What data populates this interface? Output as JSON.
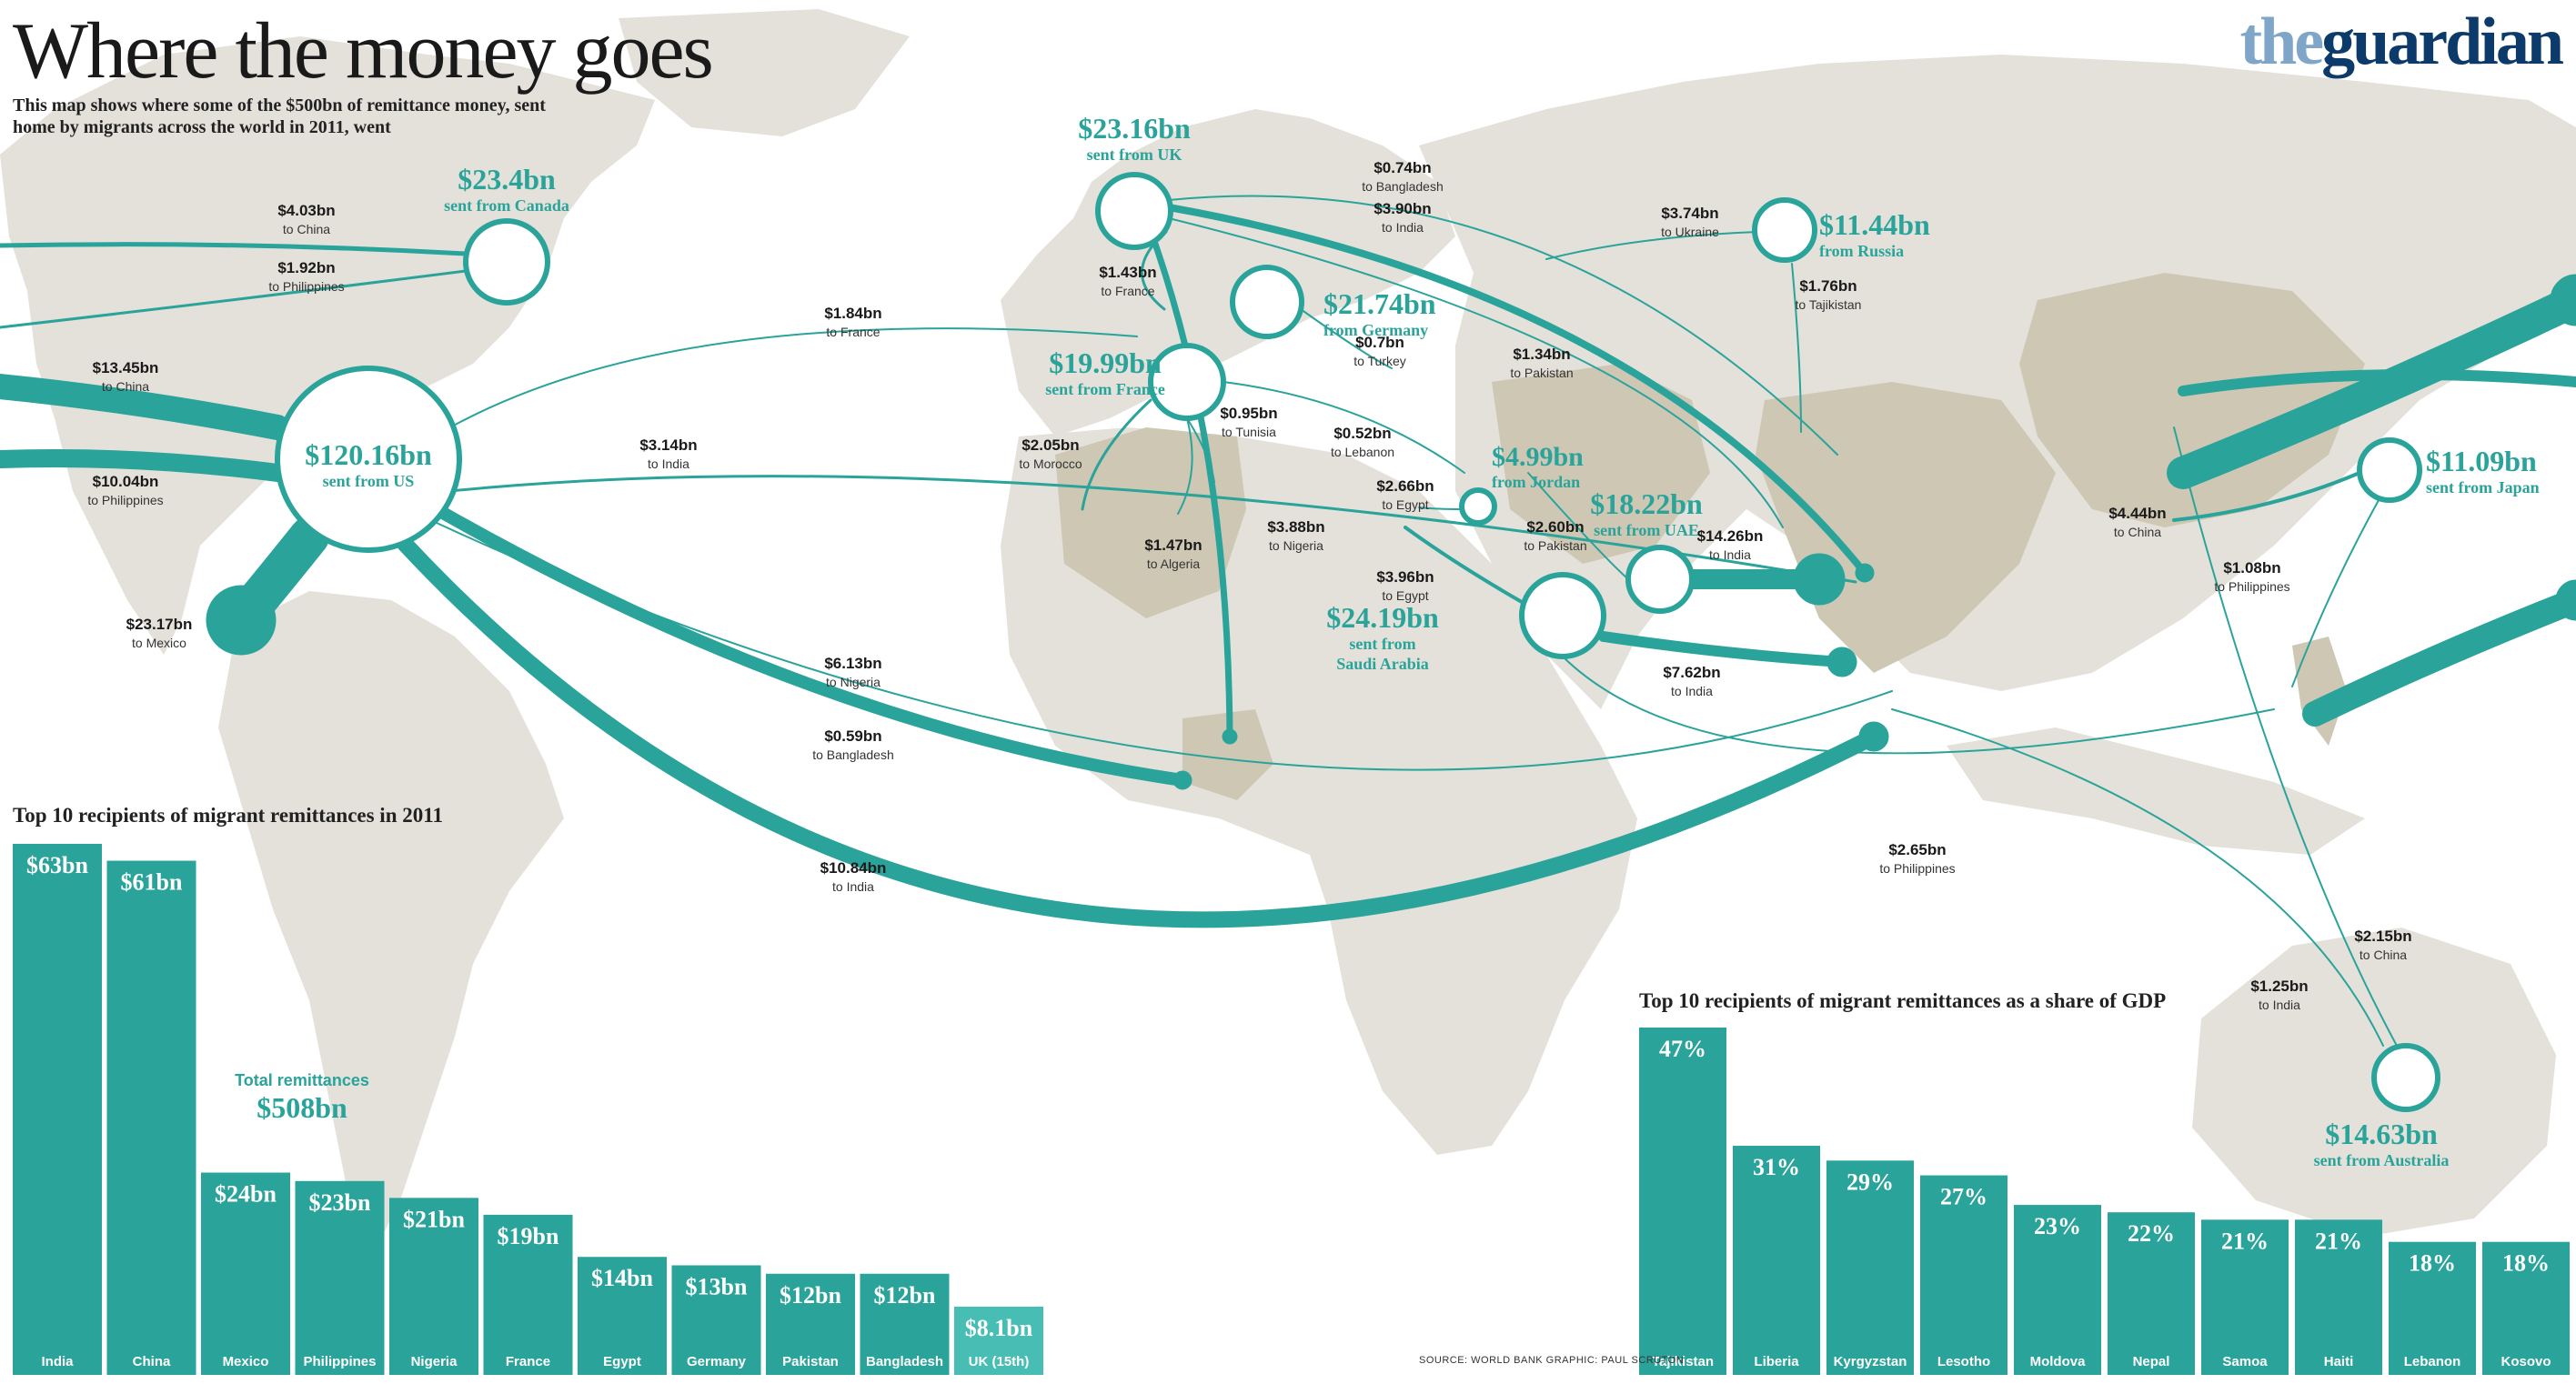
{
  "header": {
    "title": "Where the money goes",
    "subtitle": "This map shows where some of the $500bn of remittance money, sent home by migrants across the world in 2011, went",
    "logo_prefix": "the",
    "logo_name": "guardian"
  },
  "footer": {
    "source": "SOURCE: WORLD BANK   GRAPHIC: PAUL SCRUTON"
  },
  "colors": {
    "teal": "#2aa39a",
    "land": "#e3e1d9",
    "land_dark": "#cdc7b4",
    "bar": "#2aa39a",
    "bar_light": "#48bdb3"
  },
  "icons": {
    "logo": "guardian-wordmark"
  },
  "map_flows": {
    "hubs": [
      {
        "id": "us",
        "value": "$120.16bn",
        "label": "sent from US"
      },
      {
        "id": "canada",
        "value": "$23.4bn",
        "label": "sent from Canada"
      },
      {
        "id": "uk",
        "value": "$23.16bn",
        "label": "sent from UK"
      },
      {
        "id": "germany",
        "value": "$21.74bn",
        "label": "from Germany"
      },
      {
        "id": "france",
        "value": "$19.99bn",
        "label": "sent from France"
      },
      {
        "id": "russia",
        "value": "$11.44bn",
        "label": "from Russia"
      },
      {
        "id": "jordan",
        "value": "$4.99bn",
        "label": "from Jordan"
      },
      {
        "id": "uae",
        "value": "$18.22bn",
        "label": "sent from UAE"
      },
      {
        "id": "saudi",
        "value": "$24.19bn",
        "label": "sent from Saudi Arabia"
      },
      {
        "id": "japan",
        "value": "$11.09bn",
        "label": "sent from Japan"
      },
      {
        "id": "australia",
        "value": "$14.63bn",
        "label": "sent from Australia"
      }
    ],
    "flows": [
      {
        "from": "canada",
        "amount": "$4.03bn",
        "to": "to China"
      },
      {
        "from": "canada",
        "amount": "$1.92bn",
        "to": "to Philippines"
      },
      {
        "from": "us",
        "amount": "$13.45bn",
        "to": "to China"
      },
      {
        "from": "us",
        "amount": "$10.04bn",
        "to": "to Philippines"
      },
      {
        "from": "us",
        "amount": "$23.17bn",
        "to": "to Mexico"
      },
      {
        "from": "us",
        "amount": "$1.84bn",
        "to": "to France"
      },
      {
        "from": "us",
        "amount": "$3.14bn",
        "to": "to India"
      },
      {
        "from": "us",
        "amount": "$6.13bn",
        "to": "to Nigeria"
      },
      {
        "from": "us",
        "amount": "$0.59bn",
        "to": "to Bangladesh"
      },
      {
        "from": "us",
        "amount": "$10.84bn",
        "to": "to India"
      },
      {
        "from": "uk",
        "amount": "$0.74bn",
        "to": "to Bangladesh"
      },
      {
        "from": "uk",
        "amount": "$3.90bn",
        "to": "to India"
      },
      {
        "from": "uk",
        "amount": "$1.43bn",
        "to": "to France"
      },
      {
        "from": "uk",
        "amount": "$3.88bn",
        "to": "to Nigeria"
      },
      {
        "from": "uk",
        "amount": "$1.34bn",
        "to": "to Pakistan"
      },
      {
        "from": "germany",
        "amount": "$0.7bn",
        "to": "to Turkey"
      },
      {
        "from": "france",
        "amount": "$0.95bn",
        "to": "to Tunisia"
      },
      {
        "from": "france",
        "amount": "$2.05bn",
        "to": "to Morocco"
      },
      {
        "from": "france",
        "amount": "$1.47bn",
        "to": "to Algeria"
      },
      {
        "from": "france",
        "amount": "$0.52bn",
        "to": "to Lebanon"
      },
      {
        "from": "russia",
        "amount": "$3.74bn",
        "to": "to Ukraine"
      },
      {
        "from": "russia",
        "amount": "$1.76bn",
        "to": "to Tajikistan"
      },
      {
        "from": "jordan",
        "amount": "$2.66bn",
        "to": "to Egypt"
      },
      {
        "from": "uae",
        "amount": "$2.60bn",
        "to": "to Pakistan"
      },
      {
        "from": "uae",
        "amount": "$14.26bn",
        "to": "to India"
      },
      {
        "from": "saudi",
        "amount": "$3.96bn",
        "to": "to Egypt"
      },
      {
        "from": "saudi",
        "amount": "$7.62bn",
        "to": "to India"
      },
      {
        "from": "saudi",
        "amount": "$2.65bn",
        "to": "to Philippines"
      },
      {
        "from": "japan",
        "amount": "$4.44bn",
        "to": "to China"
      },
      {
        "from": "japan",
        "amount": "$1.08bn",
        "to": "to Philippines"
      },
      {
        "from": "australia",
        "amount": "$2.15bn",
        "to": "to China"
      },
      {
        "from": "australia",
        "amount": "$1.25bn",
        "to": "to India"
      }
    ]
  },
  "totals": {
    "label": "Total remittances",
    "value": "$508bn"
  },
  "chart_data": [
    {
      "type": "bar",
      "title": "Top 10 recipients of migrant remittances in 2011",
      "categories": [
        "India",
        "China",
        "Mexico",
        "Philippines",
        "Nigeria",
        "France",
        "Egypt",
        "Germany",
        "Pakistan",
        "Bangladesh",
        "UK (15th)"
      ],
      "values": [
        63,
        61,
        24,
        23,
        21,
        19,
        14,
        13,
        12,
        12,
        8.1
      ],
      "value_labels": [
        "$63bn",
        "$61bn",
        "$24bn",
        "$23bn",
        "$21bn",
        "$19bn",
        "$14bn",
        "$13bn",
        "$12bn",
        "$12bn",
        "$8.1bn"
      ],
      "unit": "$bn",
      "ylim": [
        0,
        63
      ]
    },
    {
      "type": "bar",
      "title": "Top 10 recipients of migrant remittances as a share of GDP",
      "categories": [
        "Tajikistan",
        "Liberia",
        "Kyrgyzstan",
        "Lesotho",
        "Moldova",
        "Nepal",
        "Samoa",
        "Haiti",
        "Lebanon",
        "Kosovo"
      ],
      "values": [
        47,
        31,
        29,
        27,
        23,
        22,
        21,
        21,
        18,
        18
      ],
      "value_labels": [
        "47%",
        "31%",
        "29%",
        "27%",
        "23%",
        "22%",
        "21%",
        "21%",
        "18%",
        "18%"
      ],
      "unit": "%",
      "ylim": [
        0,
        47
      ]
    }
  ]
}
